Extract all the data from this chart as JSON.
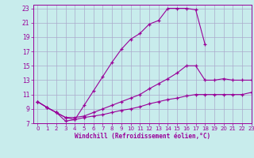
{
  "xlabel": "Windchill (Refroidissement éolien,°C)",
  "bg_color": "#c8ecec",
  "line_color": "#990099",
  "grid_color": "#aaaacc",
  "xlim": [
    -0.5,
    23
  ],
  "ylim": [
    7,
    23.5
  ],
  "xticks": [
    0,
    1,
    2,
    3,
    4,
    5,
    6,
    7,
    8,
    9,
    10,
    11,
    12,
    13,
    14,
    15,
    16,
    17,
    18,
    19,
    20,
    21,
    22,
    23
  ],
  "yticks": [
    7,
    9,
    11,
    13,
    15,
    17,
    19,
    21,
    23
  ],
  "curve1_x": [
    0,
    1,
    2,
    3,
    4,
    5,
    6,
    7,
    8,
    9,
    10,
    11,
    12,
    13,
    14,
    15,
    16,
    17,
    18
  ],
  "curve1_y": [
    10.0,
    9.2,
    8.5,
    7.3,
    7.5,
    9.5,
    11.5,
    13.5,
    15.5,
    17.3,
    18.7,
    19.5,
    20.8,
    21.3,
    23.0,
    23.0,
    23.0,
    22.8,
    18.0
  ],
  "curve2_x": [
    0,
    1,
    2,
    3,
    4,
    5,
    6,
    7,
    8,
    9,
    10,
    11,
    12,
    13,
    14,
    15,
    16,
    17,
    18,
    19,
    20,
    21,
    22,
    23
  ],
  "curve2_y": [
    10.0,
    9.2,
    8.5,
    7.8,
    7.8,
    8.0,
    8.5,
    9.0,
    9.5,
    10.0,
    10.5,
    11.0,
    11.8,
    12.5,
    13.2,
    14.0,
    15.0,
    15.0,
    13.0,
    13.0,
    13.2,
    13.0,
    13.0,
    13.0
  ],
  "curve3_x": [
    0,
    1,
    2,
    3,
    4,
    5,
    6,
    7,
    8,
    9,
    10,
    11,
    12,
    13,
    14,
    15,
    16,
    17,
    18,
    19,
    20,
    21,
    22,
    23
  ],
  "curve3_y": [
    10.0,
    9.2,
    8.5,
    7.8,
    7.5,
    7.8,
    8.0,
    8.2,
    8.5,
    8.8,
    9.0,
    9.3,
    9.7,
    10.0,
    10.3,
    10.5,
    10.8,
    11.0,
    11.0,
    11.0,
    11.0,
    11.0,
    11.0,
    11.3
  ]
}
